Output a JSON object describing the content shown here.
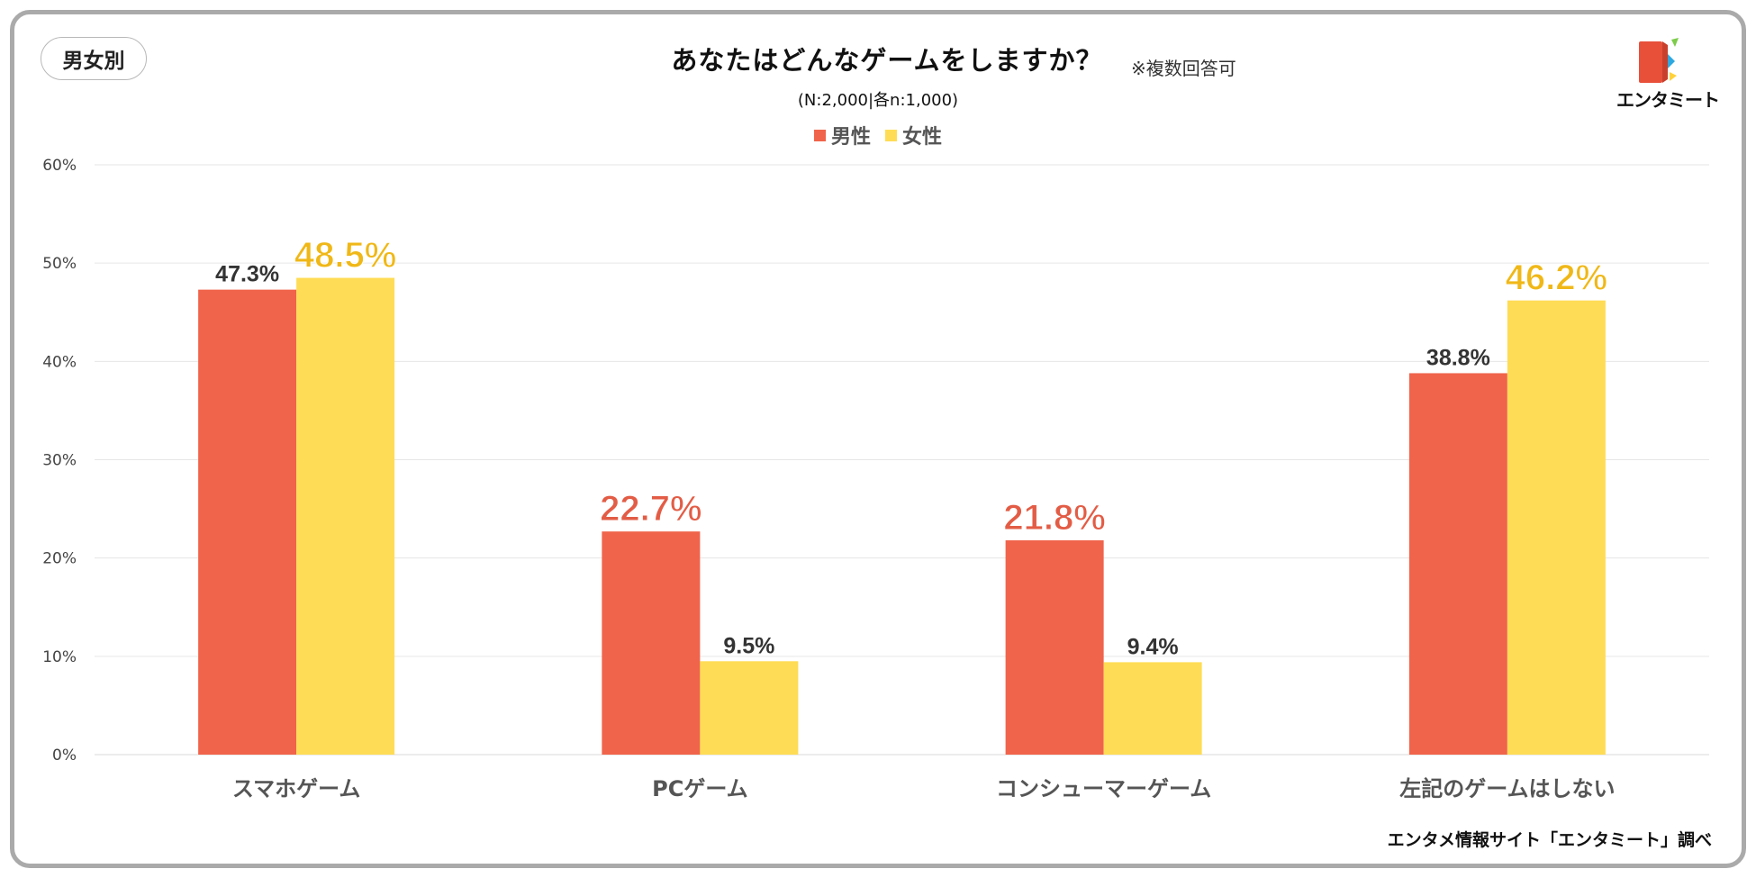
{
  "badge": "男女別",
  "title": "あなたはどんなゲームをしますか？",
  "note": "※複数回答可",
  "subtitle": "(N:2,000|各n:1,000)",
  "logo_text": "エンタミート",
  "source": "エンタメ情報サイト「エンタミート」調べ",
  "colors": {
    "male": "#f0644b",
    "female": "#ffdc55",
    "male_highlight": "#e35c45",
    "female_highlight": "#f0b817"
  },
  "chart_data": {
    "type": "bar",
    "title": "あなたはどんなゲームをしますか？",
    "categories": [
      "スマホゲーム",
      "PCゲーム",
      "コンシューマーゲーム",
      "左記のゲームはしない"
    ],
    "series": [
      {
        "name": "男性",
        "values": [
          47.3,
          22.7,
          21.8,
          38.8
        ],
        "labels": [
          "47.3%",
          "22.7%",
          "21.8%",
          "38.8%"
        ],
        "highlight": [
          false,
          true,
          true,
          false
        ]
      },
      {
        "name": "女性",
        "values": [
          48.5,
          9.5,
          9.4,
          46.2
        ],
        "labels": [
          "48.5%",
          "9.5%",
          "9.4%",
          "46.2%"
        ],
        "highlight": [
          true,
          false,
          false,
          true
        ]
      }
    ],
    "y_ticks": [
      "0%",
      "10%",
      "20%",
      "30%",
      "40%",
      "50%",
      "60%"
    ],
    "ylim": [
      0,
      60
    ],
    "grid": true,
    "legend": "top-center"
  }
}
